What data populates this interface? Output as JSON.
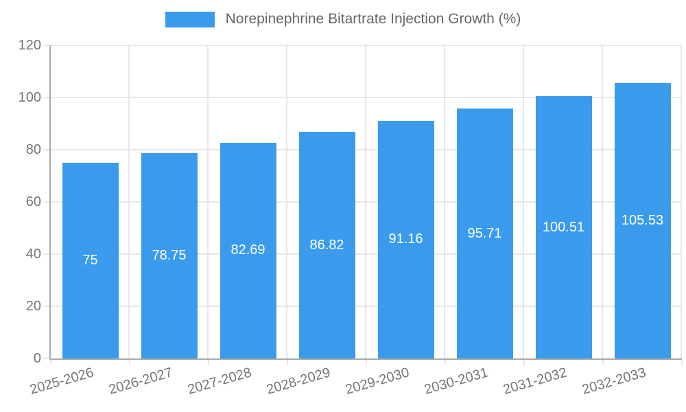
{
  "chart_data": {
    "type": "bar",
    "title": "",
    "legend": {
      "label": "Norepinephrine Bitartrate Injection Growth (%)",
      "position": "top"
    },
    "categories": [
      "2025-2026",
      "2026-2027",
      "2027-2028",
      "2028-2029",
      "2029-2030",
      "2030-2031",
      "2031-2032",
      "2032-2033"
    ],
    "series": [
      {
        "name": "Norepinephrine Bitartrate Injection Growth (%)",
        "values": [
          75,
          78.75,
          82.69,
          86.82,
          91.16,
          95.71,
          100.51,
          105.53
        ],
        "value_labels": [
          "75",
          "78.75",
          "82.69",
          "86.82",
          "91.16",
          "95.71",
          "100.51",
          "105.53"
        ]
      }
    ],
    "xlabel": "",
    "ylabel": "",
    "ylim": [
      0,
      120
    ],
    "y_ticks": [
      0,
      20,
      40,
      60,
      80,
      100,
      120
    ],
    "grid": "horizontal and vertical, light gray",
    "legend_position": "top center",
    "colors": {
      "bar": "#3A9BED",
      "grid": "#e7e7e7",
      "axis": "#a9a9a9",
      "tick_text": "#757575",
      "legend_text": "#666666",
      "value_text": "#ffffff",
      "background": "#ffffff"
    }
  }
}
